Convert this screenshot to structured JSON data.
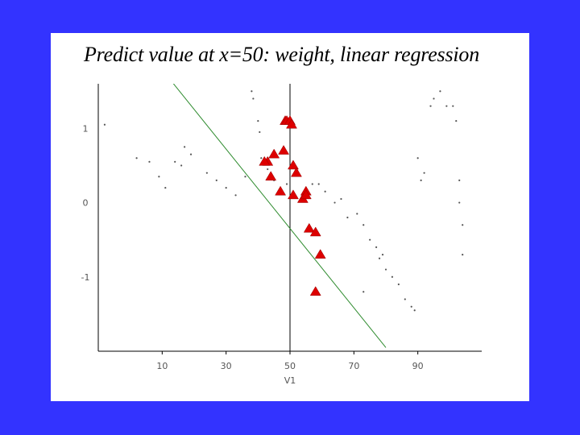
{
  "slide": {
    "title": "Predict value at x=50: weight, linear regression"
  },
  "chart_data": {
    "type": "scatter",
    "title": "Predict value at x=50: weight, linear regression",
    "xlabel": "V1",
    "ylabel": "",
    "xlim": [
      -10,
      110
    ],
    "ylim": [
      -2.0,
      1.6
    ],
    "x_ticks": [
      10,
      30,
      50,
      70,
      90
    ],
    "x_tick_labels": [
      "10",
      "30",
      "50",
      "70",
      "90"
    ],
    "y_ticks": [
      1,
      0,
      -1
    ],
    "y_tick_labels": [
      "1",
      "0",
      "-1"
    ],
    "grid": false,
    "vertical_line_x": 50,
    "colors": {
      "background": "#3333ff",
      "points": "#555555",
      "weighted": "#dd0000",
      "fit_line": "#2e8b2e"
    },
    "fit_line": {
      "x": [
        7.0,
        80.0
      ],
      "y": [
        1.95,
        -1.95
      ]
    },
    "series": [
      {
        "name": "",
        "marker": "dot",
        "x": [
          -8,
          2,
          6,
          9,
          11,
          14,
          17,
          19,
          16,
          24,
          27,
          30,
          33,
          36,
          38,
          38.5,
          40,
          40.5,
          41,
          43,
          45,
          49,
          54,
          57,
          59,
          61,
          64,
          66,
          68,
          71,
          73,
          75,
          77,
          79,
          78,
          80,
          82,
          84,
          86,
          88,
          89,
          90,
          91,
          92,
          94,
          95,
          97,
          99,
          101,
          102,
          103,
          103,
          104,
          104,
          73
        ],
        "y": [
          1.05,
          0.6,
          0.55,
          0.35,
          0.2,
          0.55,
          0.75,
          0.65,
          0.5,
          0.4,
          0.3,
          0.2,
          0.1,
          0.35,
          1.5,
          1.4,
          1.1,
          0.95,
          0.6,
          0.45,
          0.3,
          0.25,
          0.1,
          0.25,
          0.25,
          0.15,
          0.0,
          0.05,
          -0.2,
          -0.15,
          -0.3,
          -0.5,
          -0.6,
          -0.7,
          -0.75,
          -0.9,
          -1.0,
          -1.1,
          -1.3,
          -1.4,
          -1.45,
          0.6,
          0.3,
          0.4,
          1.3,
          1.4,
          1.5,
          1.3,
          1.3,
          1.1,
          0.3,
          0.0,
          -0.3,
          -0.7,
          -1.2
        ],
        "values_note": ""
      },
      {
        "name": "",
        "marker": "triangle",
        "x": [
          48.5,
          49,
          50,
          50.5,
          48,
          45,
          43,
          42,
          44,
          51,
          52,
          55,
          47,
          51,
          54,
          56,
          58,
          59.5,
          58,
          55
        ],
        "y": [
          1.1,
          1.1,
          1.1,
          1.05,
          0.7,
          0.65,
          0.55,
          0.55,
          0.35,
          0.5,
          0.4,
          0.15,
          0.15,
          0.1,
          0.05,
          -0.35,
          -0.4,
          -0.7,
          -1.2,
          0.1
        ]
      }
    ]
  }
}
